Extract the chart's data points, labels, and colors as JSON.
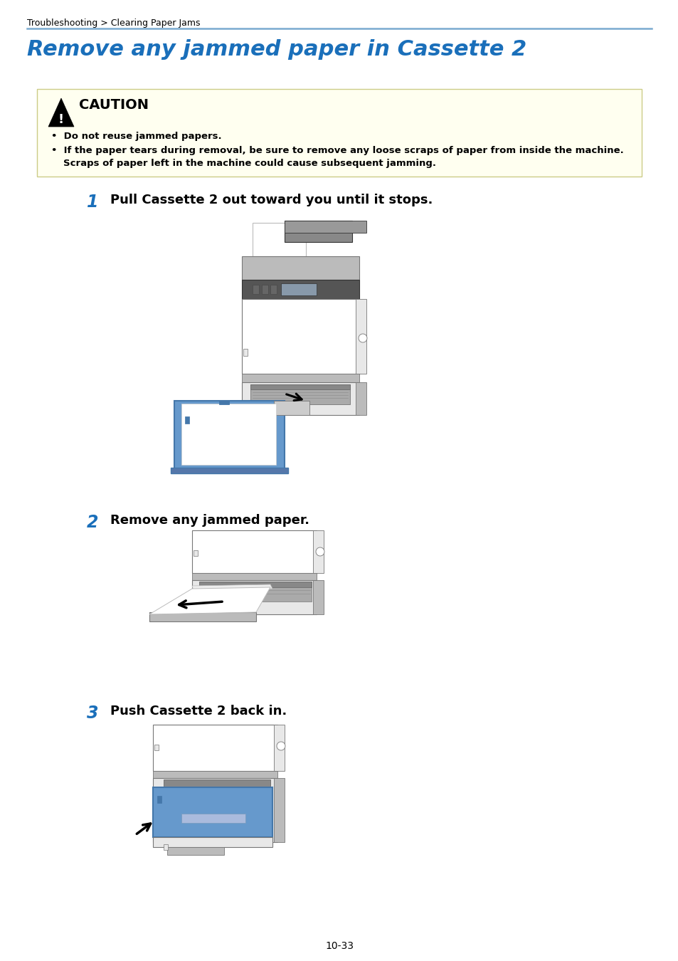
{
  "page_bg": "#ffffff",
  "breadcrumb": "Troubleshooting > Clearing Paper Jams",
  "breadcrumb_fontsize": 9,
  "separator_color": "#7aaad0",
  "title": "Remove any jammed paper in Cassette 2",
  "title_color": "#1a6fba",
  "title_fontsize": 22,
  "caution_bg": "#fffff0",
  "caution_border": "#cccc88",
  "caution_title": "CAUTION",
  "caution_bullet1": "Do not reuse jammed papers.",
  "caution_bullet2_line1": "If the paper tears during removal, be sure to remove any loose scraps of paper from inside the machine.",
  "caution_bullet2_line2": "Scraps of paper left in the machine could cause subsequent jamming.",
  "step1_num": "1",
  "step1_text": "Pull Cassette 2 out toward you until it stops.",
  "step2_num": "2",
  "step2_text": "Remove any jammed paper.",
  "step3_num": "3",
  "step3_text": "Push Cassette 2 back in.",
  "step_num_color": "#1a6fba",
  "step_fontsize": 13,
  "step_num_fontsize": 17,
  "footer_text": "10-33",
  "footer_fontsize": 10,
  "white": "#ffffff",
  "light_gray": "#e8e8e8",
  "mid_gray": "#bbbbbb",
  "dark_gray": "#777777",
  "very_dark": "#333333",
  "blue": "#6699cc",
  "blue_dark": "#4477aa",
  "black": "#000000"
}
